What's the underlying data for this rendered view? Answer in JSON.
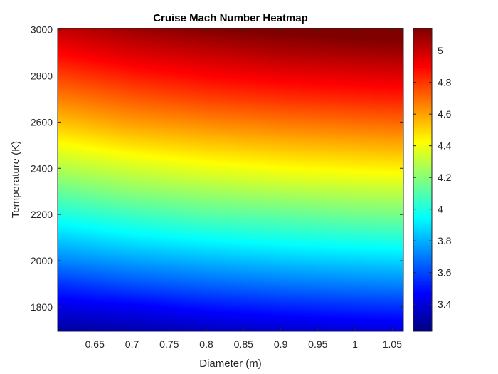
{
  "chart_data": {
    "type": "heatmap",
    "title": "Cruise Mach Number Heatmap",
    "xlabel": "Diameter (m)",
    "ylabel": "Temperature (K)",
    "xlim": [
      0.6,
      1.065
    ],
    "ylim": [
      1695,
      3005
    ],
    "x_ticks": [
      0.65,
      0.7,
      0.75,
      0.8,
      0.85,
      0.9,
      0.95,
      1,
      1.05
    ],
    "x_tick_labels": [
      "0.65",
      "0.7",
      "0.75",
      "0.8",
      "0.85",
      "0.9",
      "0.95",
      "1",
      "1.05"
    ],
    "y_ticks": [
      1800,
      2000,
      2200,
      2400,
      2600,
      2800,
      3000
    ],
    "y_tick_labels": [
      "1800",
      "2000",
      "2200",
      "2400",
      "2600",
      "2800",
      "3000"
    ],
    "colormap": "jet",
    "color_range": [
      3.23,
      5.14
    ],
    "colorbar_ticks": [
      3.4,
      3.6,
      3.8,
      4,
      4.2,
      4.4,
      4.6,
      4.8,
      5
    ],
    "colorbar_tick_labels": [
      "3.4",
      "3.6",
      "3.8",
      "4",
      "4.2",
      "4.4",
      "4.6",
      "4.8",
      "5"
    ],
    "x_values": [
      0.6,
      0.7,
      0.8,
      0.9,
      1.0,
      1.065
    ],
    "y_values": [
      1700,
      1800,
      1900,
      2000,
      2100,
      2200,
      2300,
      2400,
      2500,
      2600,
      2700,
      2800,
      2900,
      3000
    ],
    "z_values": [
      [
        3.29,
        3.32,
        3.35,
        3.38,
        3.4,
        3.41
      ],
      [
        3.42,
        3.45,
        3.5,
        3.53,
        3.55,
        3.56
      ],
      [
        3.56,
        3.62,
        3.66,
        3.69,
        3.71,
        3.72
      ],
      [
        3.72,
        3.77,
        3.81,
        3.84,
        3.86,
        3.87
      ],
      [
        3.86,
        3.92,
        3.96,
        3.99,
        4.01,
        4.02
      ],
      [
        4.0,
        4.06,
        4.11,
        4.13,
        4.16,
        4.17
      ],
      [
        4.14,
        4.21,
        4.25,
        4.28,
        4.3,
        4.31
      ],
      [
        4.28,
        4.34,
        4.39,
        4.42,
        4.44,
        4.45
      ],
      [
        4.41,
        4.48,
        4.52,
        4.55,
        4.57,
        4.58
      ],
      [
        4.54,
        4.61,
        4.65,
        4.68,
        4.7,
        4.71
      ],
      [
        4.66,
        4.73,
        4.78,
        4.81,
        4.83,
        4.84
      ],
      [
        4.78,
        4.85,
        4.9,
        4.93,
        4.95,
        4.96
      ],
      [
        4.9,
        4.97,
        5.01,
        5.05,
        5.07,
        5.08
      ],
      [
        5.01,
        5.08,
        5.13,
        5.16,
        5.18,
        5.19
      ]
    ],
    "grid": false,
    "colorbar_position": "right"
  }
}
